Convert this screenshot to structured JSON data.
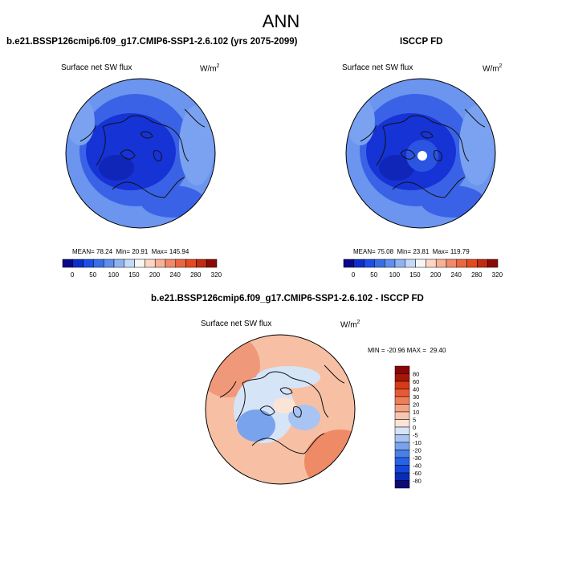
{
  "figure": {
    "season": "ANN",
    "field": "Surface net SW flux",
    "units_base": "W/m",
    "units_exp": "2"
  },
  "panels": [
    {
      "title": "b.e21.BSSP126cmip6.f09_g17.CMIP6-SSP1-2.6.102 (yrs 2075-2099)",
      "mean_label": "MEAN=",
      "mean": "78.24",
      "min_label": "Min=",
      "min": "20.91",
      "max_label": "Max=",
      "max": "145.94"
    },
    {
      "title": "ISCCP FD",
      "mean_label": "MEAN=",
      "mean": "75.08",
      "min_label": "Min=",
      "min": "23.81",
      "max_label": "Max=",
      "max": "119.79"
    },
    {
      "title": "b.e21.BSSP126cmip6.f09_g17.CMIP6-SSP1-2.6.102 - ISCCP FD",
      "min_label": "MIN =",
      "min": "-20.96",
      "max_label": "MAX =",
      "max": "29.40"
    }
  ],
  "abs_colorbar": {
    "colors": [
      "#08088a",
      "#0b2fc8",
      "#1c4fe6",
      "#3a6ee8",
      "#5f8eee",
      "#8fb2f2",
      "#c4d8f7",
      "#f6f6f4",
      "#fbd6c4",
      "#f8b194",
      "#f2896a",
      "#ec6640",
      "#e44a1f",
      "#c02b12",
      "#8a0a05"
    ],
    "tick_labels": [
      "0",
      "50",
      "100",
      "150",
      "200",
      "240",
      "280",
      "320"
    ]
  },
  "diff_colorbar": {
    "colors": [
      "#0a0a78",
      "#0a2ab8",
      "#1347dc",
      "#2862e6",
      "#4a80ea",
      "#7aa3ee",
      "#a8c4f3",
      "#d6e4f8",
      "#fbe3d6",
      "#f8c6ae",
      "#f4a384",
      "#ef7d58",
      "#e95a33",
      "#d83a18",
      "#a81606",
      "#8a0505"
    ],
    "tick_labels": [
      "80",
      "60",
      "40",
      "30",
      "20",
      "10",
      "5",
      "0",
      "-5",
      "-10",
      "-20",
      "-30",
      "-40",
      "-60",
      "-80"
    ]
  },
  "map_palette": {
    "coastline": "#111111",
    "abs_low": "#1633d6",
    "abs_mid": "#3a62e6",
    "abs_high": "#6b95ee",
    "diff_pos": "#f4a384",
    "diff_neg": "#7aa3ee"
  }
}
